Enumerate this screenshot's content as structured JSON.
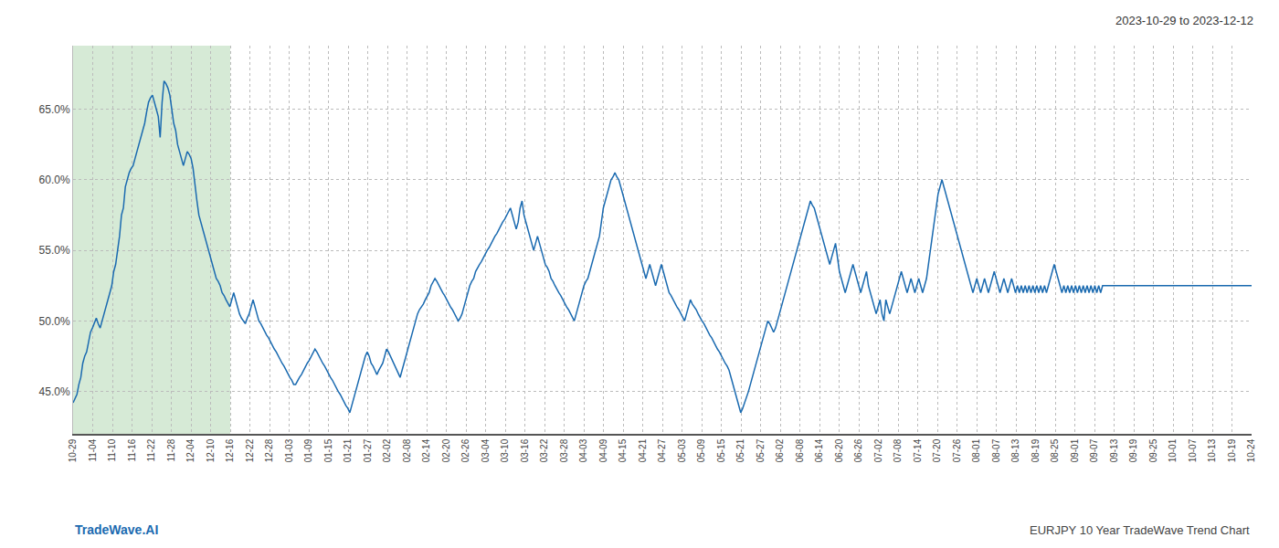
{
  "chart_data": {
    "type": "line",
    "title": "2023-10-29 to 2023-12-12",
    "annotations": [
      "TradeWave.AI",
      "EURJPY 10 Year TradeWave Trend Chart"
    ],
    "color": "#1a6ab0",
    "grid": true,
    "highlight": {
      "from": 0,
      "to": 81.2,
      "color": "#d6ead6"
    },
    "ylim": [
      42.0,
      69.5
    ],
    "yticks": [
      {
        "value": 45.0,
        "label": "45.0%"
      },
      {
        "value": 50.0,
        "label": "50.0%"
      },
      {
        "value": 55.0,
        "label": "55.0%"
      },
      {
        "value": 60.0,
        "label": "60.0%"
      },
      {
        "value": 65.0,
        "label": "65.0%"
      }
    ],
    "xlim": [
      0,
      609
    ],
    "xticks": [
      {
        "value": 0,
        "label": "10-29"
      },
      {
        "value": 10.15,
        "label": "11-04"
      },
      {
        "value": 20.3,
        "label": "11-10"
      },
      {
        "value": 30.45,
        "label": "11-16"
      },
      {
        "value": 40.6,
        "label": "11-22"
      },
      {
        "value": 50.75,
        "label": "11-28"
      },
      {
        "value": 60.9,
        "label": "12-04"
      },
      {
        "value": 71.05,
        "label": "12-10"
      },
      {
        "value": 81.2,
        "label": "12-16"
      },
      {
        "value": 91.35,
        "label": "12-22"
      },
      {
        "value": 101.5,
        "label": "12-28"
      },
      {
        "value": 111.65,
        "label": "01-03"
      },
      {
        "value": 121.8,
        "label": "01-09"
      },
      {
        "value": 131.95,
        "label": "01-15"
      },
      {
        "value": 142.1,
        "label": "01-21"
      },
      {
        "value": 152.25,
        "label": "01-27"
      },
      {
        "value": 162.4,
        "label": "02-02"
      },
      {
        "value": 172.55,
        "label": "02-08"
      },
      {
        "value": 182.7,
        "label": "02-14"
      },
      {
        "value": 192.85,
        "label": "02-20"
      },
      {
        "value": 203,
        "label": "02-26"
      },
      {
        "value": 213.15,
        "label": "03-04"
      },
      {
        "value": 223.3,
        "label": "03-10"
      },
      {
        "value": 233.45,
        "label": "03-16"
      },
      {
        "value": 243.6,
        "label": "03-22"
      },
      {
        "value": 253.75,
        "label": "03-28"
      },
      {
        "value": 263.9,
        "label": "04-03"
      },
      {
        "value": 274.05,
        "label": "04-09"
      },
      {
        "value": 284.2,
        "label": "04-15"
      },
      {
        "value": 294.35,
        "label": "04-21"
      },
      {
        "value": 304.5,
        "label": "04-27"
      },
      {
        "value": 314.65,
        "label": "05-03"
      },
      {
        "value": 324.8,
        "label": "05-09"
      },
      {
        "value": 334.95,
        "label": "05-15"
      },
      {
        "value": 345.1,
        "label": "05-21"
      },
      {
        "value": 355.25,
        "label": "05-27"
      },
      {
        "value": 365.4,
        "label": "06-02"
      },
      {
        "value": 375.55,
        "label": "06-08"
      },
      {
        "value": 385.7,
        "label": "06-14"
      },
      {
        "value": 395.85,
        "label": "06-20"
      },
      {
        "value": 406,
        "label": "06-26"
      },
      {
        "value": 416.15,
        "label": "07-02"
      },
      {
        "value": 426.3,
        "label": "07-08"
      },
      {
        "value": 436.45,
        "label": "07-14"
      },
      {
        "value": 446.6,
        "label": "07-20"
      },
      {
        "value": 456.75,
        "label": "07-26"
      },
      {
        "value": 466.9,
        "label": "08-01"
      },
      {
        "value": 477.05,
        "label": "08-07"
      },
      {
        "value": 487.2,
        "label": "08-13"
      },
      {
        "value": 497.35,
        "label": "08-19"
      },
      {
        "value": 507.5,
        "label": "08-25"
      },
      {
        "value": 517.65,
        "label": "09-01"
      },
      {
        "value": 527.8,
        "label": "09-07"
      },
      {
        "value": 537.95,
        "label": "09-13"
      },
      {
        "value": 548.1,
        "label": "09-19"
      },
      {
        "value": 558.25,
        "label": "09-25"
      },
      {
        "value": 568.4,
        "label": "10-01"
      },
      {
        "value": 578.55,
        "label": "10-07"
      },
      {
        "value": 588.7,
        "label": "10-13"
      },
      {
        "value": 598.85,
        "label": "10-19"
      },
      {
        "value": 609,
        "label": "10-24"
      }
    ],
    "values": [
      44.2,
      44.5,
      44.8,
      45.5,
      46.0,
      47.0,
      47.5,
      47.8,
      48.5,
      49.2,
      49.5,
      49.8,
      50.2,
      49.8,
      49.5,
      50.0,
      50.5,
      51.0,
      51.5,
      52.0,
      52.5,
      53.5,
      54.0,
      55.0,
      56.0,
      57.5,
      58.0,
      59.5,
      60.0,
      60.5,
      60.8,
      61.0,
      61.5,
      62.0,
      62.5,
      63.0,
      63.5,
      64.0,
      64.8,
      65.5,
      65.8,
      66.0,
      65.5,
      65.0,
      64.5,
      63.0,
      65.5,
      67.0,
      66.8,
      66.5,
      66.0,
      65.0,
      64.0,
      63.5,
      62.5,
      62.0,
      61.5,
      61.0,
      61.5,
      62.0,
      61.8,
      61.5,
      60.8,
      59.5,
      58.5,
      57.5,
      57.0,
      56.5,
      56.0,
      55.5,
      55.0,
      54.5,
      54.0,
      53.5,
      53.0,
      52.8,
      52.5,
      52.0,
      51.8,
      51.5,
      51.2,
      51.0,
      51.5,
      52.0,
      51.5,
      51.0,
      50.5,
      50.2,
      50.0,
      49.8,
      50.2,
      50.5,
      51.0,
      51.5,
      51.0,
      50.5,
      50.0,
      49.8,
      49.5,
      49.2,
      49.0,
      48.8,
      48.5,
      48.2,
      48.0,
      47.8,
      47.5,
      47.2,
      47.0,
      46.8,
      46.5,
      46.2,
      46.0,
      45.8,
      45.5,
      45.5,
      45.8,
      46.0,
      46.2,
      46.5,
      46.8,
      47.0,
      47.2,
      47.5,
      47.8,
      48.0,
      47.8,
      47.5,
      47.2,
      47.0,
      46.8,
      46.5,
      46.2,
      46.0,
      45.8,
      45.5,
      45.2,
      45.0,
      44.8,
      44.5,
      44.2,
      44.0,
      43.8,
      43.5,
      44.0,
      44.5,
      45.0,
      45.5,
      46.0,
      46.5,
      47.0,
      47.5,
      47.8,
      47.5,
      47.0,
      46.8,
      46.5,
      46.2,
      46.5,
      46.8,
      47.0,
      47.5,
      48.0,
      47.8,
      47.5,
      47.2,
      46.8,
      46.5,
      46.2,
      46.0,
      46.5,
      47.0,
      47.5,
      48.0,
      48.5,
      49.0,
      49.5,
      50.0,
      50.5,
      50.8,
      51.0,
      51.2,
      51.5,
      51.8,
      52.0,
      52.5,
      52.8,
      53.0,
      52.8,
      52.5,
      52.2,
      52.0,
      51.8,
      51.5,
      51.2,
      51.0,
      50.8,
      50.5,
      50.2,
      50.0,
      50.2,
      50.5,
      51.0,
      51.5,
      52.0,
      52.5,
      52.8,
      53.0,
      53.5,
      53.8,
      54.0,
      54.2,
      54.5,
      54.8,
      55.0,
      55.2,
      55.5,
      55.8,
      56.0,
      56.2,
      56.5,
      56.8,
      57.0,
      57.2,
      57.5,
      57.8,
      58.0,
      57.5,
      57.0,
      56.5,
      57.0,
      58.0,
      58.5,
      57.5,
      57.0,
      56.5,
      56.0,
      55.5,
      55.0,
      55.5,
      56.0,
      55.5,
      55.0,
      54.5,
      54.0,
      53.8,
      53.5,
      53.0,
      52.8,
      52.5,
      52.2,
      52.0,
      51.8,
      51.5,
      51.2,
      51.0,
      50.8,
      50.5,
      50.2,
      50.0,
      50.5,
      51.0,
      51.5,
      52.0,
      52.5,
      52.8,
      53.0,
      53.5,
      54.0,
      54.5,
      55.0,
      55.5,
      56.0,
      57.0,
      58.0,
      58.5,
      59.0,
      59.5,
      60.0,
      60.2,
      60.5,
      60.2,
      60.0,
      59.5,
      59.0,
      58.5,
      58.0,
      57.5,
      57.0,
      56.5,
      56.0,
      55.5,
      55.0,
      54.5,
      54.0,
      53.5,
      53.0,
      53.5,
      54.0,
      53.5,
      53.0,
      52.5,
      53.0,
      53.5,
      54.0,
      53.5,
      53.0,
      52.5,
      52.0,
      51.8,
      51.5,
      51.2,
      51.0,
      50.8,
      50.5,
      50.2,
      50.0,
      50.5,
      51.0,
      51.5,
      51.2,
      51.0,
      50.8,
      50.5,
      50.2,
      50.0,
      49.8,
      49.5,
      49.2,
      49.0,
      48.8,
      48.5,
      48.2,
      48.0,
      47.8,
      47.5,
      47.2,
      47.0,
      46.8,
      46.5,
      46.0,
      45.5,
      45.0,
      44.5,
      44.0,
      43.5,
      43.8,
      44.2,
      44.5,
      45.0,
      45.5,
      46.0,
      46.5,
      47.0,
      47.5,
      48.0,
      48.5,
      49.0,
      49.5,
      50.0,
      49.8,
      49.5,
      49.2,
      49.5,
      50.0,
      50.5,
      51.0,
      51.5,
      52.0,
      52.5,
      53.0,
      53.5,
      54.0,
      54.5,
      55.0,
      55.5,
      56.0,
      56.5,
      57.0,
      57.5,
      58.0,
      58.5,
      58.2,
      58.0,
      57.5,
      57.0,
      56.5,
      56.0,
      55.5,
      55.0,
      54.5,
      54.0,
      54.5,
      55.0,
      55.5,
      54.5,
      53.5,
      53.0,
      52.5,
      52.0,
      52.5,
      53.0,
      53.5,
      54.0,
      53.5,
      53.0,
      52.5,
      52.0,
      52.5,
      53.0,
      53.5,
      52.5,
      52.0,
      51.5,
      51.0,
      50.5,
      51.0,
      51.5,
      50.5,
      50.0,
      51.5,
      51.0,
      50.5,
      51.0,
      51.5,
      52.0,
      52.5,
      53.0,
      53.5,
      53.0,
      52.5,
      52.0,
      52.5,
      53.0,
      52.5,
      52.0,
      52.5,
      53.0,
      52.5,
      52.0,
      52.5,
      53.0,
      54.0,
      55.0,
      56.0,
      57.0,
      58.0,
      59.0,
      59.5,
      60.0,
      59.5,
      59.0,
      58.5,
      58.0,
      57.5,
      57.0,
      56.5,
      56.0,
      55.5,
      55.0,
      54.5,
      54.0,
      53.5,
      53.0,
      52.5,
      52.0,
      52.5,
      53.0,
      52.5,
      52.0,
      52.5,
      53.0,
      52.5,
      52.0,
      52.5,
      53.0,
      53.5,
      53.0,
      52.5,
      52.0,
      52.5,
      53.0,
      52.5,
      52.0,
      52.5,
      53.0,
      52.5,
      52.0,
      52.5,
      52.0,
      52.5,
      52.0,
      52.5,
      52.0,
      52.5,
      52.0,
      52.5,
      52.0,
      52.5,
      52.0,
      52.5,
      52.0,
      52.5,
      52.0,
      52.5,
      53.0,
      53.5,
      54.0,
      53.5,
      53.0,
      52.5,
      52.0,
      52.5,
      52.0,
      52.5,
      52.0,
      52.5,
      52.0,
      52.5,
      52.0,
      52.5,
      52.0,
      52.5,
      52.0,
      52.5,
      52.0,
      52.5,
      52.0,
      52.5,
      52.0,
      52.5,
      52.0,
      52.5,
      52.5,
      52.5,
      52.5,
      52.5,
      52.5,
      52.5,
      52.5,
      52.5,
      52.5,
      52.5,
      52.5,
      52.5,
      52.5,
      52.5,
      52.5,
      52.5,
      52.5,
      52.5,
      52.5,
      52.5,
      52.5,
      52.5,
      52.5,
      52.5,
      52.5,
      52.5,
      52.5,
      52.5,
      52.5,
      52.5,
      52.5,
      52.5,
      52.5,
      52.5,
      52.5,
      52.5,
      52.5,
      52.5,
      52.5,
      52.5,
      52.5,
      52.5,
      52.5,
      52.5,
      52.5,
      52.5,
      52.5,
      52.5,
      52.5,
      52.5,
      52.5,
      52.5,
      52.5,
      52.5,
      52.5,
      52.5,
      52.5,
      52.5,
      52.5,
      52.5,
      52.5,
      52.5,
      52.5,
      52.5,
      52.5,
      52.5,
      52.5,
      52.5,
      52.5,
      52.5,
      52.5,
      52.5,
      52.5,
      52.5,
      52.5,
      52.5,
      52.5
    ]
  }
}
